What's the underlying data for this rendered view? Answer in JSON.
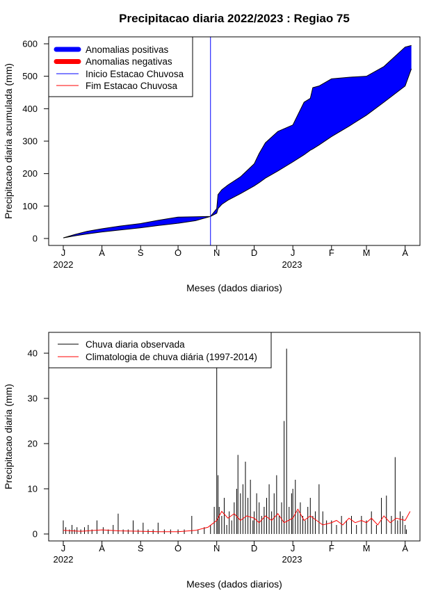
{
  "chart_data": [
    {
      "type": "area",
      "title": "Precipitacao diaria 2022/2023 : Regiao 75",
      "ylabel": "Precipitacao diaria acumulada (mm)",
      "xlabel": "Meses (dados diarios)",
      "ylim": [
        0,
        620
      ],
      "yticks": [
        0,
        100,
        200,
        300,
        400,
        500,
        600
      ],
      "month_ticks": [
        "J",
        "A",
        "S",
        "O",
        "N",
        "D",
        "J",
        "F",
        "M",
        "A"
      ],
      "year_labels": [
        "2022",
        "2023"
      ],
      "legend_position": "top-left",
      "legend": {
        "pos": "Anomalias positivas",
        "neg": "Anomalias negativas",
        "start": "Inicio Estacao Chuvosa",
        "end": "Fim Estacao Chuvosa"
      },
      "colors": {
        "positive": "#0000ff",
        "negative": "#ff0000",
        "start_line": "#0000ff",
        "end_line": "#ff0000"
      },
      "rainy_season_start": "2022-10-27",
      "series": [
        {
          "name": "observada_acumulada",
          "x": [
            "2022-07-01",
            "2022-07-10",
            "2022-07-20",
            "2022-08-01",
            "2022-08-15",
            "2022-09-01",
            "2022-09-15",
            "2022-10-01",
            "2022-10-15",
            "2022-10-27",
            "2022-11-01",
            "2022-11-02",
            "2022-11-05",
            "2022-11-10",
            "2022-11-20",
            "2022-12-01",
            "2022-12-05",
            "2022-12-10",
            "2022-12-20",
            "2023-01-01",
            "2023-01-10",
            "2023-01-15",
            "2023-01-17",
            "2023-01-22",
            "2023-02-01",
            "2023-02-15",
            "2023-03-01",
            "2023-03-15",
            "2023-04-01",
            "2023-04-06"
          ],
          "values": [
            2,
            12,
            22,
            30,
            38,
            46,
            56,
            66,
            67,
            68,
            92,
            135,
            150,
            165,
            190,
            230,
            262,
            295,
            330,
            350,
            420,
            432,
            465,
            470,
            492,
            497,
            500,
            530,
            590,
            595
          ]
        },
        {
          "name": "climatologia_acumulada",
          "x": [
            "2022-07-01",
            "2022-07-10",
            "2022-07-20",
            "2022-08-01",
            "2022-08-15",
            "2022-09-01",
            "2022-09-15",
            "2022-10-01",
            "2022-10-15",
            "2022-10-27",
            "2022-11-01",
            "2022-11-02",
            "2022-11-05",
            "2022-11-10",
            "2022-11-20",
            "2022-12-01",
            "2022-12-05",
            "2022-12-10",
            "2022-12-20",
            "2023-01-01",
            "2023-01-10",
            "2023-01-15",
            "2023-01-17",
            "2023-01-22",
            "2023-02-01",
            "2023-02-15",
            "2023-03-01",
            "2023-03-15",
            "2023-04-01",
            "2023-04-06"
          ],
          "values": [
            2,
            8,
            14,
            20,
            26,
            33,
            40,
            47,
            55,
            68,
            78,
            92,
            105,
            118,
            138,
            162,
            172,
            186,
            208,
            236,
            258,
            272,
            276,
            288,
            314,
            346,
            380,
            420,
            470,
            523
          ]
        }
      ]
    },
    {
      "type": "bar",
      "ylabel": "Precipitacao diaria (mm)",
      "xlabel": "Meses (dados diarios)",
      "ylim": [
        -1.5,
        45
      ],
      "yticks": [
        0,
        10,
        20,
        30,
        40
      ],
      "month_ticks": [
        "J",
        "A",
        "S",
        "O",
        "N",
        "D",
        "J",
        "F",
        "M",
        "A"
      ],
      "year_labels": [
        "2022",
        "2023"
      ],
      "legend_position": "top-left",
      "legend": {
        "obs": "Chuva diaria observada",
        "clim": "Climatologia de chuva diária (1997-2014)"
      },
      "colors": {
        "observed": "#000000",
        "climatology": "#ff0000"
      },
      "series": [
        {
          "name": "Chuva diaria observada",
          "x": [
            "2022-07-01",
            "2022-07-03",
            "2022-07-06",
            "2022-07-08",
            "2022-07-10",
            "2022-07-12",
            "2022-07-15",
            "2022-07-18",
            "2022-07-21",
            "2022-07-24",
            "2022-07-28",
            "2022-08-02",
            "2022-08-06",
            "2022-08-10",
            "2022-08-14",
            "2022-08-18",
            "2022-08-22",
            "2022-08-26",
            "2022-08-30",
            "2022-09-03",
            "2022-09-07",
            "2022-09-11",
            "2022-09-15",
            "2022-09-20",
            "2022-09-25",
            "2022-10-01",
            "2022-10-06",
            "2022-10-12",
            "2022-10-17",
            "2022-10-22",
            "2022-10-27",
            "2022-10-30",
            "2022-11-01",
            "2022-11-02",
            "2022-11-03",
            "2022-11-05",
            "2022-11-07",
            "2022-11-09",
            "2022-11-11",
            "2022-11-13",
            "2022-11-15",
            "2022-11-17",
            "2022-11-18",
            "2022-11-20",
            "2022-11-22",
            "2022-11-24",
            "2022-11-26",
            "2022-11-28",
            "2022-11-30",
            "2022-12-01",
            "2022-12-03",
            "2022-12-05",
            "2022-12-07",
            "2022-12-09",
            "2022-12-11",
            "2022-12-13",
            "2022-12-15",
            "2022-12-17",
            "2022-12-19",
            "2022-12-21",
            "2022-12-23",
            "2022-12-25",
            "2022-12-27",
            "2022-12-29",
            "2022-12-31",
            "2023-01-01",
            "2023-01-03",
            "2023-01-05",
            "2023-01-07",
            "2023-01-09",
            "2023-01-11",
            "2023-01-13",
            "2023-01-15",
            "2023-01-17",
            "2023-01-19",
            "2023-01-22",
            "2023-01-25",
            "2023-01-28",
            "2023-02-01",
            "2023-02-05",
            "2023-02-09",
            "2023-02-13",
            "2023-02-17",
            "2023-02-21",
            "2023-02-25",
            "2023-03-01",
            "2023-03-05",
            "2023-03-09",
            "2023-03-13",
            "2023-03-17",
            "2023-03-21",
            "2023-03-24",
            "2023-03-26",
            "2023-03-28",
            "2023-03-30",
            "2023-04-01",
            "2023-04-02"
          ],
          "values": [
            3,
            1.5,
            1,
            2,
            1,
            1.5,
            1,
            1.5,
            2,
            1,
            3,
            1.5,
            1,
            2,
            4.5,
            1,
            1,
            3,
            1,
            2.5,
            1,
            1,
            2.5,
            1,
            1,
            1,
            1,
            4,
            1,
            1.5,
            2,
            6,
            37,
            13,
            6,
            4,
            8,
            2,
            5,
            3,
            7,
            10,
            17.5,
            9,
            11,
            16,
            8,
            12,
            3,
            5,
            9,
            7,
            4,
            6,
            8,
            11,
            5,
            9,
            13,
            4,
            7,
            25,
            41,
            6,
            9,
            10,
            12,
            5,
            7,
            4,
            3,
            6,
            8,
            4,
            5,
            11,
            5,
            3,
            3,
            2,
            4,
            3,
            4,
            2,
            4,
            3,
            5,
            2,
            8,
            8.5,
            4,
            17,
            3,
            5,
            4,
            2,
            1
          ]
        },
        {
          "name": "Climatologia de chuva diária (1997-2014)",
          "x": [
            "2022-07-01",
            "2022-07-15",
            "2022-08-01",
            "2022-08-15",
            "2022-09-01",
            "2022-09-15",
            "2022-10-01",
            "2022-10-15",
            "2022-10-25",
            "2022-11-01",
            "2022-11-05",
            "2022-11-10",
            "2022-11-15",
            "2022-11-20",
            "2022-11-25",
            "2022-12-01",
            "2022-12-05",
            "2022-12-10",
            "2022-12-15",
            "2022-12-20",
            "2022-12-25",
            "2023-01-01",
            "2023-01-05",
            "2023-01-10",
            "2023-01-15",
            "2023-01-20",
            "2023-01-25",
            "2023-02-01",
            "2023-02-05",
            "2023-02-10",
            "2023-02-15",
            "2023-02-20",
            "2023-02-25",
            "2023-03-01",
            "2023-03-05",
            "2023-03-10",
            "2023-03-15",
            "2023-03-20",
            "2023-03-25",
            "2023-04-01",
            "2023-04-05"
          ],
          "values": [
            0.8,
            0.6,
            0.9,
            0.7,
            0.6,
            0.5,
            0.5,
            0.8,
            1.5,
            3,
            5,
            3.5,
            4.5,
            3,
            4,
            3.5,
            2.5,
            4,
            3,
            4.5,
            2.5,
            3.5,
            5.5,
            3,
            4,
            3,
            2,
            2.5,
            3,
            2,
            3.5,
            2.5,
            3,
            2.5,
            3.5,
            2,
            4,
            2.5,
            3.5,
            3,
            5
          ]
        }
      ]
    }
  ]
}
